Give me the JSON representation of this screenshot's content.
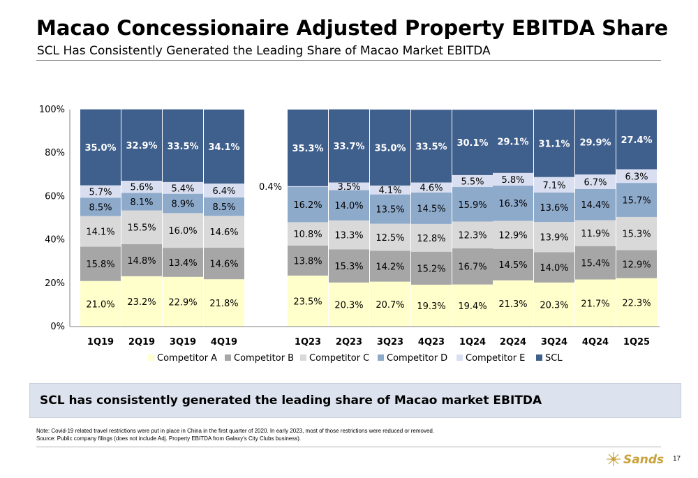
{
  "header": {
    "title": "Macao Concessionaire Adjusted Property EBITDA Share",
    "subtitle": "SCL Has Consistently Generated the Leading Share of Macao Market EBITDA"
  },
  "chart_data": {
    "type": "bar",
    "stacked": true,
    "categories": [
      "1Q19",
      "2Q19",
      "3Q19",
      "4Q19",
      "1Q23",
      "2Q23",
      "3Q23",
      "4Q23",
      "1Q24",
      "2Q24",
      "3Q24",
      "4Q24",
      "1Q25"
    ],
    "series": [
      {
        "name": "Competitor A",
        "color": "#ffffcc",
        "values": [
          21.0,
          23.2,
          22.9,
          21.8,
          23.5,
          20.3,
          20.7,
          19.3,
          19.4,
          21.3,
          20.3,
          21.7,
          22.3
        ]
      },
      {
        "name": "Competitor B",
        "color": "#a6a6a6",
        "values": [
          15.8,
          14.8,
          13.4,
          14.6,
          13.8,
          15.3,
          14.2,
          15.2,
          16.7,
          14.5,
          14.0,
          15.4,
          12.9
        ]
      },
      {
        "name": "Competitor C",
        "color": "#d9d9d9",
        "values": [
          14.1,
          15.5,
          16.0,
          14.6,
          10.8,
          13.3,
          12.5,
          12.8,
          12.3,
          12.9,
          13.9,
          11.9,
          15.3
        ]
      },
      {
        "name": "Competitor D",
        "color": "#8eaacb",
        "values": [
          8.5,
          8.1,
          8.9,
          8.5,
          16.2,
          14.0,
          13.5,
          14.5,
          15.9,
          16.3,
          13.6,
          14.4,
          15.7
        ]
      },
      {
        "name": "Competitor E",
        "color": "#d9dff0",
        "values": [
          5.7,
          5.6,
          5.4,
          6.4,
          0.4,
          3.5,
          4.1,
          4.6,
          5.5,
          5.8,
          7.1,
          6.7,
          6.3
        ]
      },
      {
        "name": "SCL",
        "color": "#3f5f8c",
        "values": [
          35.0,
          32.9,
          33.5,
          34.1,
          35.3,
          33.7,
          35.0,
          33.5,
          30.1,
          29.1,
          31.1,
          29.9,
          27.4
        ]
      }
    ],
    "y_ticks": [
      "0%",
      "20%",
      "40%",
      "60%",
      "80%",
      "100%"
    ],
    "ylim": [
      0,
      100
    ],
    "legend_position": "bottom",
    "grid": false
  },
  "callout": {
    "text": "SCL has consistently generated the leading share of Macao market EBITDA"
  },
  "footnotes": {
    "note": "Note: Covid-19 related travel restrictions were put in place in China in the first quarter of 2020.  In early 2023, most of those restrictions were reduced or removed.",
    "source": "Source: Public company filings (does not include Adj. Property EBITDA from Galaxy’s City Clubs business)."
  },
  "footer": {
    "logo_text": "Sands",
    "page_number": "17"
  }
}
